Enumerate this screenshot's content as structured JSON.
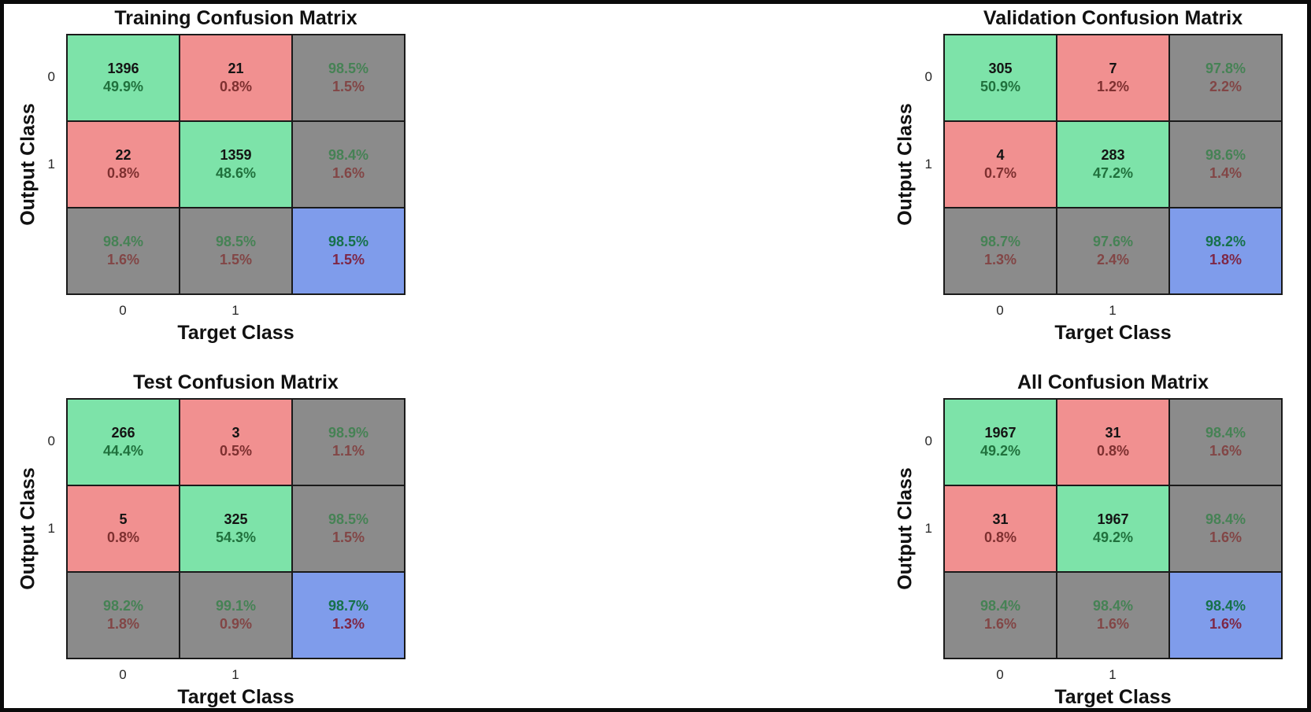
{
  "colors": {
    "cell_green": "#7de3a9",
    "cell_red": "#f19090",
    "cell_gray": "#8b8b8b",
    "cell_blue": "#7f9ceb",
    "text_count": "#141414",
    "text_green": "#20713d",
    "text_red": "#7e3030",
    "text_gray_green": "#468255",
    "text_gray_red": "#824646",
    "text_blue_green": "#16714a",
    "text_blue_red": "#7e2745",
    "border": "#1a1a1a",
    "figure_border": "#0a0a0a"
  },
  "chart_data": [
    {
      "name": "training",
      "type": "heatmap",
      "title": "Training Confusion Matrix",
      "xlabel": "Target Class",
      "ylabel": "Output Class",
      "x_ticks": [
        "0",
        "1"
      ],
      "y_ticks": [
        "0",
        "1"
      ],
      "classes": [
        "0",
        "1"
      ],
      "counts": [
        [
          1396,
          21
        ],
        [
          22,
          1359
        ]
      ],
      "overall_accuracy": "98.5%",
      "grid": [
        [
          {
            "v1": "1396",
            "v2": "49.9%",
            "type": "green"
          },
          {
            "v1": "21",
            "v2": "0.8%",
            "type": "red"
          },
          {
            "v1": "98.5%",
            "v2": "1.5%",
            "type": "gray"
          }
        ],
        [
          {
            "v1": "22",
            "v2": "0.8%",
            "type": "red"
          },
          {
            "v1": "1359",
            "v2": "48.6%",
            "type": "green"
          },
          {
            "v1": "98.4%",
            "v2": "1.6%",
            "type": "gray"
          }
        ],
        [
          {
            "v1": "98.4%",
            "v2": "1.6%",
            "type": "gray"
          },
          {
            "v1": "98.5%",
            "v2": "1.5%",
            "type": "gray"
          },
          {
            "v1": "98.5%",
            "v2": "1.5%",
            "type": "blue"
          }
        ]
      ]
    },
    {
      "name": "validation",
      "type": "heatmap",
      "title": "Validation Confusion Matrix",
      "xlabel": "Target Class",
      "ylabel": "Output Class",
      "x_ticks": [
        "0",
        "1"
      ],
      "y_ticks": [
        "0",
        "1"
      ],
      "classes": [
        "0",
        "1"
      ],
      "counts": [
        [
          305,
          7
        ],
        [
          4,
          283
        ]
      ],
      "overall_accuracy": "98.2%",
      "grid": [
        [
          {
            "v1": "305",
            "v2": "50.9%",
            "type": "green"
          },
          {
            "v1": "7",
            "v2": "1.2%",
            "type": "red"
          },
          {
            "v1": "97.8%",
            "v2": "2.2%",
            "type": "gray"
          }
        ],
        [
          {
            "v1": "4",
            "v2": "0.7%",
            "type": "red"
          },
          {
            "v1": "283",
            "v2": "47.2%",
            "type": "green"
          },
          {
            "v1": "98.6%",
            "v2": "1.4%",
            "type": "gray"
          }
        ],
        [
          {
            "v1": "98.7%",
            "v2": "1.3%",
            "type": "gray"
          },
          {
            "v1": "97.6%",
            "v2": "2.4%",
            "type": "gray"
          },
          {
            "v1": "98.2%",
            "v2": "1.8%",
            "type": "blue"
          }
        ]
      ]
    },
    {
      "name": "test",
      "type": "heatmap",
      "title": "Test Confusion Matrix",
      "xlabel": "Target Class",
      "ylabel": "Output Class",
      "x_ticks": [
        "0",
        "1"
      ],
      "y_ticks": [
        "0",
        "1"
      ],
      "classes": [
        "0",
        "1"
      ],
      "counts": [
        [
          266,
          3
        ],
        [
          5,
          325
        ]
      ],
      "overall_accuracy": "98.7%",
      "grid": [
        [
          {
            "v1": "266",
            "v2": "44.4%",
            "type": "green"
          },
          {
            "v1": "3",
            "v2": "0.5%",
            "type": "red"
          },
          {
            "v1": "98.9%",
            "v2": "1.1%",
            "type": "gray"
          }
        ],
        [
          {
            "v1": "5",
            "v2": "0.8%",
            "type": "red"
          },
          {
            "v1": "325",
            "v2": "54.3%",
            "type": "green"
          },
          {
            "v1": "98.5%",
            "v2": "1.5%",
            "type": "gray"
          }
        ],
        [
          {
            "v1": "98.2%",
            "v2": "1.8%",
            "type": "gray"
          },
          {
            "v1": "99.1%",
            "v2": "0.9%",
            "type": "gray"
          },
          {
            "v1": "98.7%",
            "v2": "1.3%",
            "type": "blue"
          }
        ]
      ]
    },
    {
      "name": "all",
      "type": "heatmap",
      "title": "All Confusion Matrix",
      "xlabel": "Target Class",
      "ylabel": "Output Class",
      "x_ticks": [
        "0",
        "1"
      ],
      "y_ticks": [
        "0",
        "1"
      ],
      "classes": [
        "0",
        "1"
      ],
      "counts": [
        [
          1967,
          31
        ],
        [
          31,
          1967
        ]
      ],
      "overall_accuracy": "98.4%",
      "grid": [
        [
          {
            "v1": "1967",
            "v2": "49.2%",
            "type": "green"
          },
          {
            "v1": "31",
            "v2": "0.8%",
            "type": "red"
          },
          {
            "v1": "98.4%",
            "v2": "1.6%",
            "type": "gray"
          }
        ],
        [
          {
            "v1": "31",
            "v2": "0.8%",
            "type": "red"
          },
          {
            "v1": "1967",
            "v2": "49.2%",
            "type": "green"
          },
          {
            "v1": "98.4%",
            "v2": "1.6%",
            "type": "gray"
          }
        ],
        [
          {
            "v1": "98.4%",
            "v2": "1.6%",
            "type": "gray"
          },
          {
            "v1": "98.4%",
            "v2": "1.6%",
            "type": "gray"
          },
          {
            "v1": "98.4%",
            "v2": "1.6%",
            "type": "blue"
          }
        ]
      ]
    }
  ]
}
